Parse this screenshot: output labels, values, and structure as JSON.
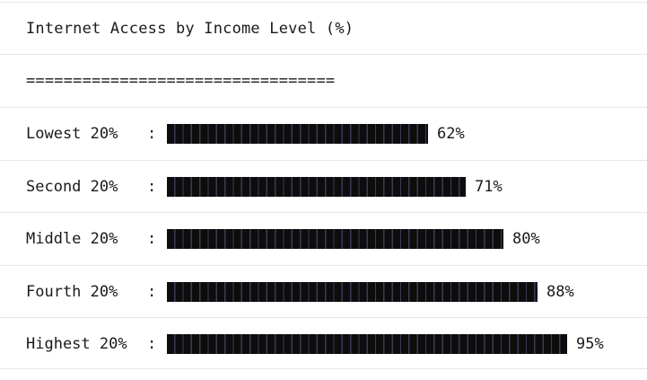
{
  "header": {
    "title": "Internet Access by Income Level (%)",
    "separator": "================================="
  },
  "chart_data": {
    "type": "bar",
    "orientation": "horizontal",
    "title": "Internet Access by Income Level (%)",
    "categories": [
      "Lowest 20%",
      "Second 20%",
      "Middle 20%",
      "Fourth 20%",
      "Highest 20%"
    ],
    "values": [
      62,
      71,
      80,
      88,
      95
    ],
    "value_labels": [
      "62%",
      "71%",
      "80%",
      "88%",
      "95%"
    ],
    "separator_char": ":",
    "bar_color": "#111111",
    "xlim": [
      0,
      100
    ]
  }
}
